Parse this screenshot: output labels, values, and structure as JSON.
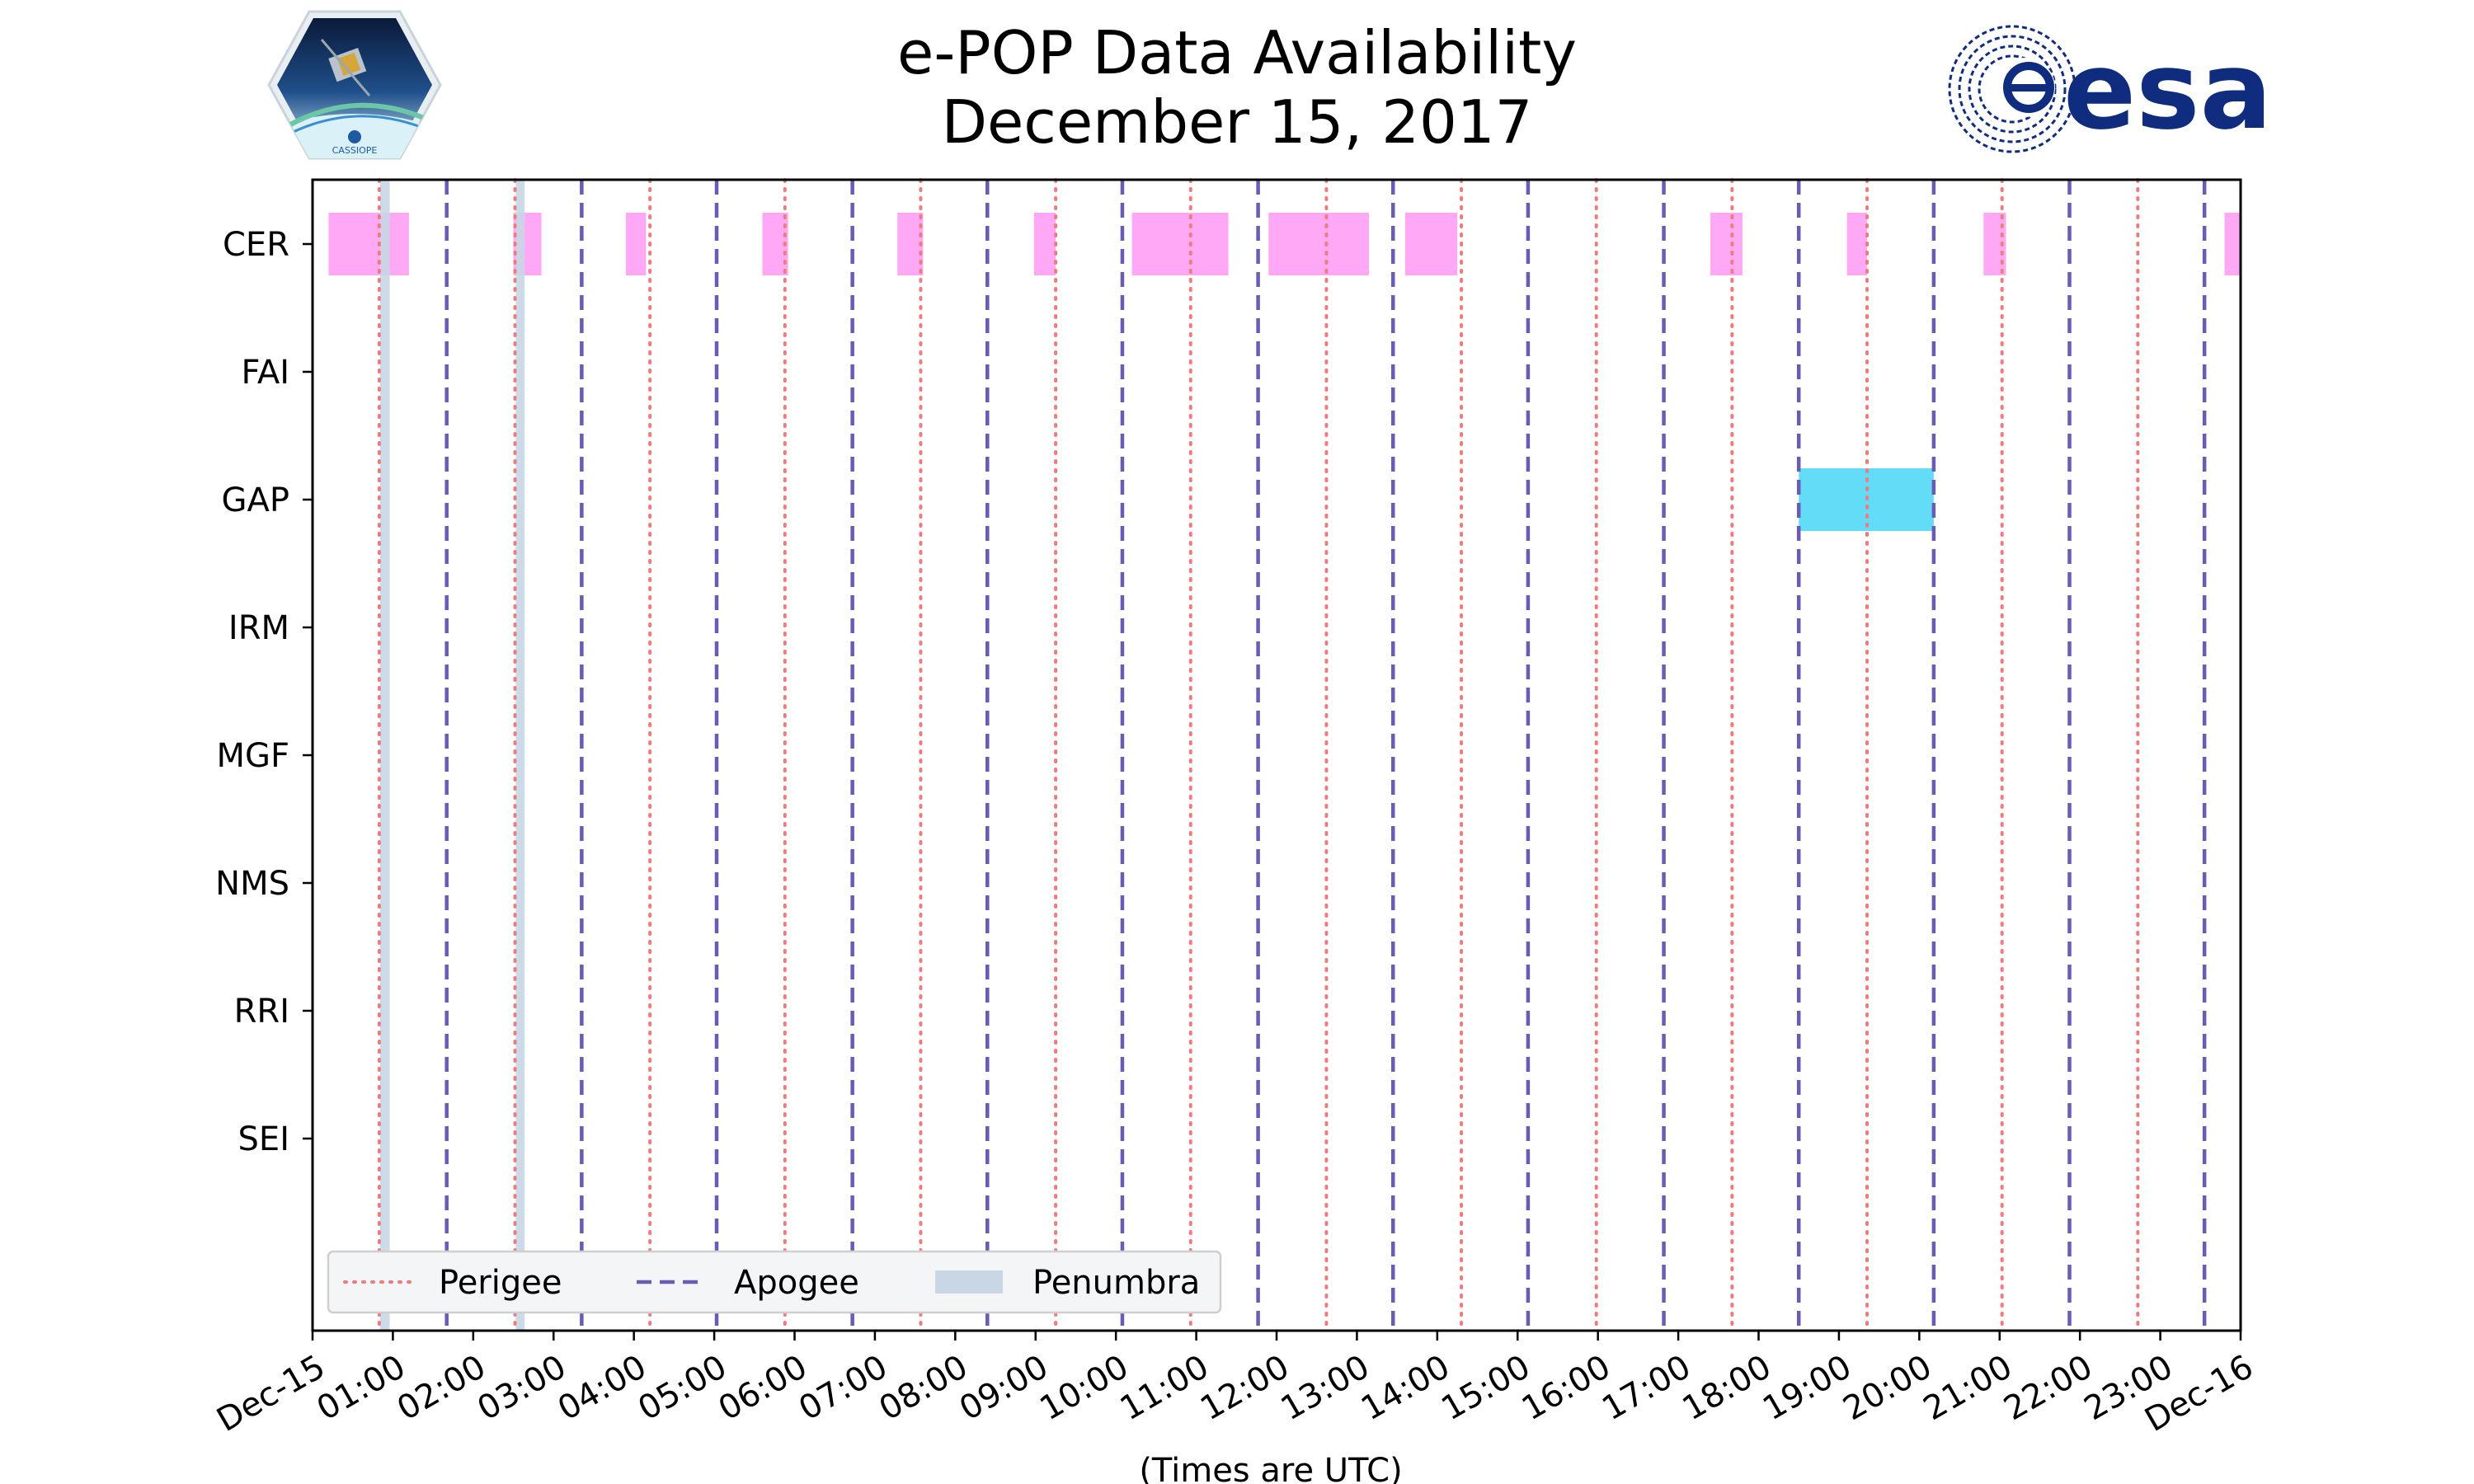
{
  "title": "e-POP Data Availability",
  "subtitle": "December 15, 2017",
  "chart_data": {
    "type": "timeline",
    "title": "e-POP Data Availability",
    "subtitle": "December 15, 2017",
    "xlabel": "(Times are UTC)",
    "x_unit": "hours UTC",
    "xlim": [
      0,
      24
    ],
    "x_tick_values": [
      0,
      1,
      2,
      3,
      4,
      5,
      6,
      7,
      8,
      9,
      10,
      11,
      12,
      13,
      14,
      15,
      16,
      17,
      18,
      19,
      20,
      21,
      22,
      23,
      24
    ],
    "x_tick_labels": [
      "Dec-15",
      "01:00",
      "02:00",
      "03:00",
      "04:00",
      "05:00",
      "06:00",
      "07:00",
      "08:00",
      "09:00",
      "10:00",
      "11:00",
      "12:00",
      "13:00",
      "14:00",
      "15:00",
      "16:00",
      "17:00",
      "18:00",
      "19:00",
      "20:00",
      "21:00",
      "22:00",
      "23:00",
      "Dec-16"
    ],
    "instruments": [
      "CER",
      "FAI",
      "GAP",
      "IRM",
      "MGF",
      "NMS",
      "RRI",
      "SEI"
    ],
    "perigee_times": [
      0.83,
      2.52,
      4.2,
      5.88,
      7.57,
      9.25,
      10.93,
      12.62,
      14.3,
      15.98,
      17.67,
      19.35,
      21.03,
      22.72
    ],
    "apogee_times": [
      1.67,
      3.35,
      5.03,
      6.72,
      8.4,
      10.08,
      11.77,
      13.45,
      15.13,
      16.82,
      18.5,
      20.18,
      21.87,
      23.55
    ],
    "penumbra_intervals": [
      [
        0.84,
        0.96
      ],
      [
        2.53,
        2.64
      ]
    ],
    "availability": [
      {
        "instrument": "CER",
        "color": "#ffa8f5",
        "intervals": [
          [
            0.2,
            1.2
          ],
          [
            2.5,
            2.85
          ],
          [
            3.9,
            4.15
          ],
          [
            5.6,
            5.92
          ],
          [
            7.28,
            7.6
          ],
          [
            8.98,
            9.25
          ],
          [
            10.2,
            11.4
          ],
          [
            11.9,
            13.15
          ],
          [
            13.6,
            14.25
          ],
          [
            17.4,
            17.8
          ],
          [
            19.1,
            19.35
          ],
          [
            20.8,
            21.08
          ],
          [
            23.8,
            24.0
          ]
        ]
      },
      {
        "instrument": "GAP",
        "color": "#63ddf7",
        "intervals": [
          [
            18.5,
            20.18
          ]
        ]
      }
    ],
    "legend": {
      "location": "lower-left",
      "entries": [
        {
          "label": "Perigee",
          "style": "dotted",
          "color": "#f07b7b"
        },
        {
          "label": "Apogee",
          "style": "dashed",
          "color": "#6a5bb5"
        },
        {
          "label": "Penumbra",
          "style": "patch",
          "color": "#c8d6e6"
        }
      ]
    }
  },
  "logos": {
    "left_text": "CASSIOPE",
    "right_text": "esa",
    "esa_color": "#0f2c7e"
  }
}
